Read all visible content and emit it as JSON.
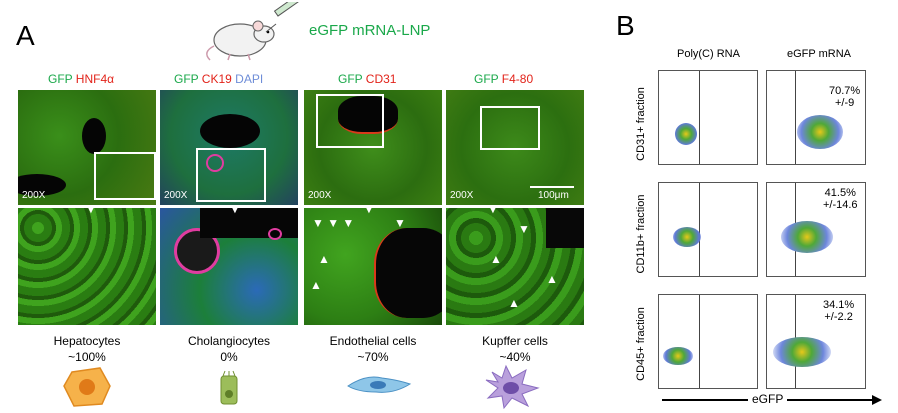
{
  "panelA": {
    "letter": "A",
    "injection": "eGFP mRNA-LNP",
    "columns": [
      {
        "stains": [
          {
            "text": "GFP",
            "color": "green"
          },
          {
            "text": " HNF4α",
            "color": "red"
          }
        ],
        "mag": "200X",
        "cell": "Hepatocytes",
        "pct": "~100%"
      },
      {
        "stains": [
          {
            "text": "GFP",
            "color": "green"
          },
          {
            "text": " CK19",
            "color": "red"
          },
          {
            "text": " DAPI",
            "color": "blue"
          }
        ],
        "mag": "200X",
        "cell": "Cholangiocytes",
        "pct": "0%"
      },
      {
        "stains": [
          {
            "text": "GFP",
            "color": "green"
          },
          {
            "text": " CD31",
            "color": "red"
          }
        ],
        "mag": "200X",
        "cell": "Endothelial cells",
        "pct": "~70%"
      },
      {
        "stains": [
          {
            "text": "GFP",
            "color": "green"
          },
          {
            "text": " F4-80",
            "color": "red"
          }
        ],
        "mag": "200X",
        "cell": "Kupffer cells",
        "pct": "~40%"
      }
    ],
    "scalebar": "100μm"
  },
  "panelB": {
    "letter": "B",
    "col_headers": [
      "Poly(C) RNA",
      "eGFP mRNA"
    ],
    "rows": [
      {
        "ylabel": "CD31+ fraction",
        "pct": "70.7%",
        "sd": "+/-9"
      },
      {
        "ylabel": "CD11b+ fraction",
        "pct": "41.5%",
        "sd": "+/-14.6"
      },
      {
        "ylabel": "CD45+ fraction",
        "pct": "34.1%",
        "sd": "+/-2.2"
      }
    ],
    "xaxis": "eGFP"
  }
}
